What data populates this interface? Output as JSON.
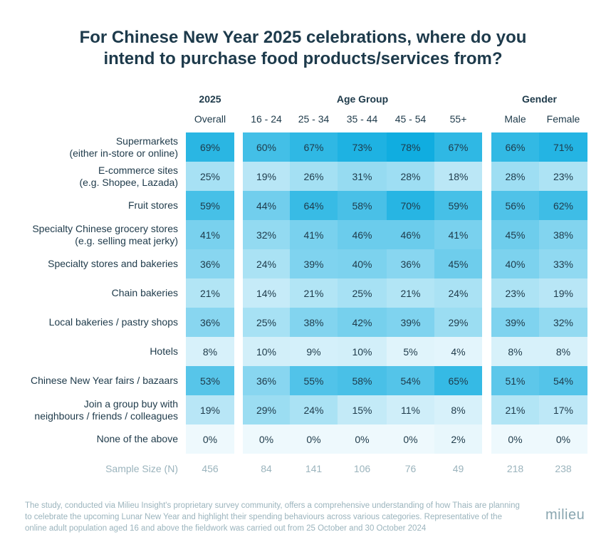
{
  "title_line1": "For Chinese New Year 2025 celebrations, where do you",
  "title_line2": "intend to purchase food products/services from?",
  "chart_data": {
    "type": "heatmap",
    "group_headers": [
      "2025",
      "Age Group",
      "Gender"
    ],
    "columns": [
      "Overall",
      "16 - 24",
      "25 - 34",
      "35 - 44",
      "45 - 54",
      "55+",
      "Male",
      "Female"
    ],
    "rows": [
      {
        "label": [
          "Supermarkets",
          "(either in-store or online)"
        ],
        "values": [
          69,
          60,
          67,
          73,
          78,
          67,
          66,
          71
        ]
      },
      {
        "label": [
          "E-commerce sites",
          "(e.g. Shopee, Lazada)"
        ],
        "values": [
          25,
          19,
          26,
          31,
          28,
          18,
          28,
          23
        ]
      },
      {
        "label": [
          "Fruit stores"
        ],
        "values": [
          59,
          44,
          64,
          58,
          70,
          59,
          56,
          62
        ]
      },
      {
        "label": [
          "Specialty Chinese grocery stores",
          "(e.g. selling meat jerky)"
        ],
        "values": [
          41,
          32,
          41,
          46,
          46,
          41,
          45,
          38
        ]
      },
      {
        "label": [
          "Specialty stores and bakeries"
        ],
        "values": [
          36,
          24,
          39,
          40,
          36,
          45,
          40,
          33
        ]
      },
      {
        "label": [
          "Chain bakeries"
        ],
        "values": [
          21,
          14,
          21,
          25,
          21,
          24,
          23,
          19
        ]
      },
      {
        "label": [
          "Local bakeries / pastry shops"
        ],
        "values": [
          36,
          25,
          38,
          42,
          39,
          29,
          39,
          32
        ]
      },
      {
        "label": [
          "Hotels"
        ],
        "values": [
          8,
          10,
          9,
          10,
          5,
          4,
          8,
          8
        ]
      },
      {
        "label": [
          "Chinese New Year fairs / bazaars"
        ],
        "values": [
          53,
          36,
          55,
          58,
          54,
          65,
          51,
          54
        ]
      },
      {
        "label": [
          "Join a group buy with",
          "neighbours / friends / colleagues"
        ],
        "values": [
          19,
          29,
          24,
          15,
          11,
          8,
          21,
          17
        ]
      },
      {
        "label": [
          "None of the above"
        ],
        "values": [
          0,
          0,
          0,
          0,
          0,
          2,
          0,
          0
        ]
      }
    ],
    "unit": "%",
    "sample_size_label": "Sample Size (N)",
    "sample_sizes": [
      456,
      84,
      141,
      106,
      76,
      49,
      218,
      238
    ],
    "color_low": "#eef9fd",
    "color_high": "#10ade0"
  },
  "footnote": "The study, conducted via Milieu Insight's proprietary survey community, offers a comprehensive understanding of how Thais are planning to celebrate the upcoming Lunar New Year and highlight their spending behaviours across various categories. Representative of the online adult population aged 16 and above the fieldwork was carried out from 25 October and 30 October 2024",
  "logo": "milieu"
}
